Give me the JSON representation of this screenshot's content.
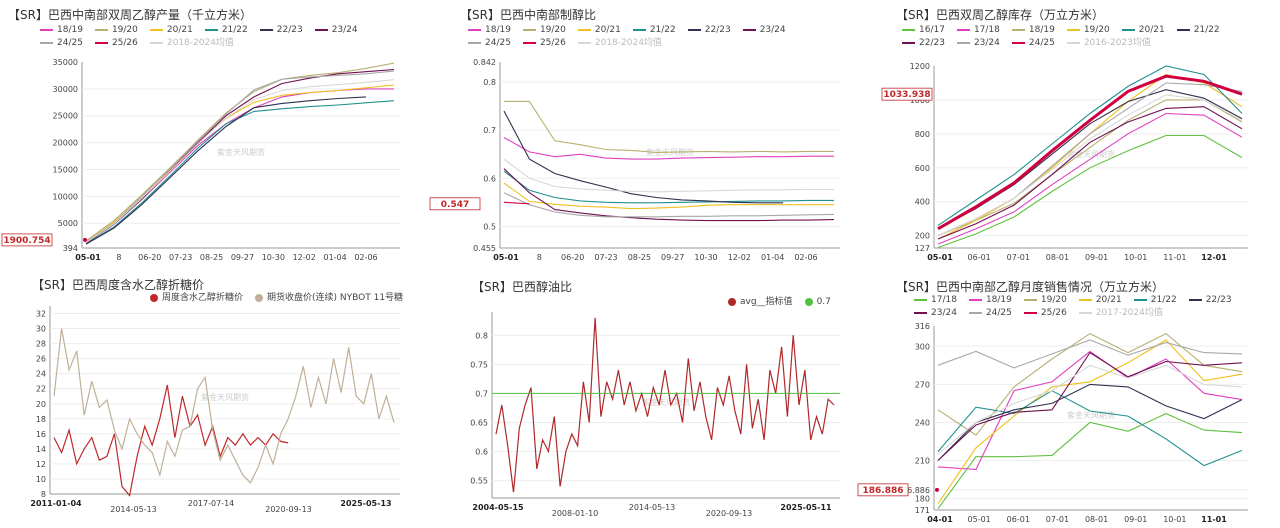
{
  "chart_data": [
    {
      "id": "c1",
      "type": "line",
      "title": "【SR】巴西中南部双周乙醇产量（千立方米）",
      "x_labels": [
        "05-01",
        "8",
        "06-20",
        "07-23",
        "08-25",
        "09-27",
        "10-30",
        "12-02",
        "01-04",
        "02-06"
      ],
      "ylim": [
        394,
        35000
      ],
      "y_ticks": [
        394,
        5000,
        10000,
        15000,
        20000,
        25000,
        30000,
        35000
      ],
      "highlight_value": "1900.754",
      "series": [
        {
          "name": "18/19",
          "color": "#e040c0",
          "values": [
            1300,
            5000,
            9500,
            14500,
            19500,
            23500,
            26500,
            28500,
            29300,
            29700,
            30000,
            30000
          ]
        },
        {
          "name": "19/20",
          "color": "#b8b070",
          "values": [
            1700,
            5500,
            10300,
            15300,
            20500,
            25500,
            29500,
            31800,
            32500,
            33000,
            33800,
            34800
          ]
        },
        {
          "name": "20/21",
          "color": "#f0c020",
          "values": [
            1500,
            5200,
            10000,
            15000,
            20000,
            24500,
            27500,
            28800,
            29300,
            29700,
            30200,
            30700
          ]
        },
        {
          "name": "21/22",
          "color": "#209090",
          "values": [
            1200,
            4300,
            8800,
            13800,
            19000,
            23500,
            25800,
            26300,
            26700,
            27000,
            27400,
            27800
          ]
        },
        {
          "name": "22/23",
          "color": "#303050",
          "values": [
            1100,
            4100,
            8500,
            13500,
            18500,
            23000,
            26500,
            27300,
            27800,
            28200,
            28500
          ]
        },
        {
          "name": "23/24",
          "color": "#701050",
          "values": [
            1300,
            4800,
            9500,
            14800,
            20000,
            25000,
            28500,
            31000,
            32000,
            32800,
            33200,
            33600
          ]
        },
        {
          "name": "24/25",
          "color": "#a8a8a8",
          "values": [
            1500,
            5000,
            10000,
            15200,
            20300,
            25300,
            29800,
            31800,
            32200,
            32500,
            32800,
            33300
          ]
        },
        {
          "name": "25/26",
          "color": "#d00040",
          "values": [
            1900.754
          ]
        },
        {
          "name": "2018-2024均值",
          "color": "#d8d8d8",
          "values": [
            1400,
            4900,
            9700,
            14700,
            19800,
            24600,
            28000,
            29700,
            30400,
            30800,
            31200,
            31700
          ]
        }
      ]
    },
    {
      "id": "c2",
      "type": "line",
      "title": "【SR】巴西中南部制醇比",
      "x_labels": [
        "05-01",
        "8",
        "06-20",
        "07-23",
        "08-25",
        "09-27",
        "10-30",
        "12-02",
        "01-04",
        "02-06"
      ],
      "ylim": [
        0.455,
        0.842
      ],
      "y_ticks": [
        0.455,
        0.5,
        0.6,
        0.7,
        0.8,
        0.842
      ],
      "highlight_value": "0.547",
      "series": [
        {
          "name": "18/19",
          "color": "#e040c0",
          "values": [
            0.685,
            0.655,
            0.645,
            0.65,
            0.642,
            0.64,
            0.64,
            0.642,
            0.643,
            0.644,
            0.645,
            0.645,
            0.646,
            0.646
          ]
        },
        {
          "name": "19/20",
          "color": "#b8b070",
          "values": [
            0.76,
            0.76,
            0.678,
            0.67,
            0.66,
            0.658,
            0.654,
            0.655,
            0.656,
            0.655,
            0.656,
            0.655,
            0.656,
            0.656
          ]
        },
        {
          "name": "20/21",
          "color": "#f0c020",
          "values": [
            0.59,
            0.552,
            0.546,
            0.542,
            0.54,
            0.537,
            0.538,
            0.54,
            0.544,
            0.545,
            0.545,
            0.545,
            0.545,
            0.545
          ]
        },
        {
          "name": "21/22",
          "color": "#209090",
          "values": [
            0.615,
            0.575,
            0.56,
            0.553,
            0.55,
            0.549,
            0.549,
            0.55,
            0.551,
            0.552,
            0.553,
            0.553,
            0.554,
            0.554
          ]
        },
        {
          "name": "22/23",
          "color": "#303050",
          "values": [
            0.74,
            0.64,
            0.61,
            0.595,
            0.582,
            0.568,
            0.56,
            0.555,
            0.553,
            0.55,
            0.549,
            0.549
          ]
        },
        {
          "name": "23/24",
          "color": "#701050",
          "values": [
            0.62,
            0.57,
            0.535,
            0.528,
            0.522,
            0.518,
            0.515,
            0.513,
            0.512,
            0.512,
            0.512,
            0.513,
            0.513,
            0.514
          ]
        },
        {
          "name": "24/25",
          "color": "#a8a8a8",
          "values": [
            0.57,
            0.545,
            0.53,
            0.523,
            0.52,
            0.52,
            0.52,
            0.521,
            0.521,
            0.522,
            0.522,
            0.523,
            0.524,
            0.525
          ]
        },
        {
          "name": "25/26",
          "color": "#d00040",
          "values": [
            0.55,
            0.547
          ]
        },
        {
          "name": "2018-2024均值",
          "color": "#d8d8d8",
          "values": [
            0.64,
            0.6,
            0.583,
            0.578,
            0.575,
            0.573,
            0.572,
            0.573,
            0.574,
            0.575,
            0.576,
            0.576,
            0.577,
            0.577
          ]
        }
      ]
    },
    {
      "id": "c3",
      "type": "line",
      "title": "【SR】巴西双周乙醇库存（万立方米）",
      "x_labels": [
        "05-01",
        "06-01",
        "07-01",
        "08-01",
        "09-01",
        "10-01",
        "11-01",
        "12-01"
      ],
      "ylim": [
        127,
        1200
      ],
      "y_ticks": [
        127,
        200,
        400,
        600,
        800,
        1000,
        1200
      ],
      "highlight_value": "1033.938",
      "series": [
        {
          "name": "16/17",
          "color": "#60c040",
          "values": [
            130,
            210,
            310,
            460,
            600,
            700,
            790,
            790,
            660
          ]
        },
        {
          "name": "17/18",
          "color": "#e040c0",
          "values": [
            150,
            240,
            340,
            500,
            650,
            800,
            920,
            910,
            780
          ]
        },
        {
          "name": "18/19",
          "color": "#b8b070",
          "values": [
            200,
            290,
            390,
            560,
            720,
            880,
            1000,
            1000,
            870
          ]
        },
        {
          "name": "19/20",
          "color": "#f0c020",
          "values": [
            180,
            290,
            420,
            600,
            800,
            990,
            1150,
            1100,
            960
          ]
        },
        {
          "name": "20/21",
          "color": "#209090",
          "values": [
            260,
            410,
            560,
            740,
            920,
            1080,
            1200,
            1150,
            920
          ]
        },
        {
          "name": "21/22",
          "color": "#303050",
          "values": [
            240,
            360,
            500,
            680,
            860,
            990,
            1060,
            1010,
            890
          ]
        },
        {
          "name": "22/23",
          "color": "#701050",
          "values": [
            180,
            270,
            380,
            560,
            750,
            870,
            950,
            960,
            830
          ]
        },
        {
          "name": "23/24",
          "color": "#a8a8a8",
          "values": [
            200,
            300,
            420,
            610,
            800,
            950,
            1100,
            1090,
            1050
          ]
        },
        {
          "name": "24/25",
          "color": "#d00040",
          "values": [
            240,
            370,
            510,
            700,
            880,
            1050,
            1140,
            1110,
            1033.938
          ]
        },
        {
          "name": "2016-2023均值",
          "color": "#d8d8d8",
          "values": [
            200,
            300,
            420,
            590,
            770,
            910,
            1030,
            1000,
            880
          ]
        }
      ]
    },
    {
      "id": "c4",
      "type": "line",
      "title": "【SR】巴西周度含水乙醇折糖价",
      "x_labels": [
        "2011-01-04",
        "2014-05-13",
        "2017-07-14",
        "2020-09-13",
        "2025-05-13"
      ],
      "ylim": [
        8,
        33
      ],
      "y_ticks": [
        8,
        10,
        12,
        14,
        16,
        18,
        20,
        22,
        24,
        26,
        28,
        30,
        32
      ],
      "series": [
        {
          "name": "周度含水乙醇折糖价",
          "color": "#c0282a",
          "values": [
            15.5,
            13.5,
            16.5,
            12.0,
            14.0,
            15.5,
            12.5,
            13.0,
            16.0,
            9.0,
            7.8,
            13.0,
            17.0,
            14.5,
            18.0,
            22.5,
            15.5,
            21.0,
            17.0,
            18.5,
            14.5,
            17.0,
            13.0,
            15.5,
            14.5,
            16.0,
            14.5,
            15.5,
            14.5,
            16.0,
            15.0,
            14.8
          ]
        },
        {
          "name": "期货收盘价(连续) NYBOT 11号糖",
          "color": "#c0b098",
          "values": [
            21.0,
            30.0,
            24.5,
            27.0,
            18.5,
            23.0,
            19.5,
            20.5,
            16.5,
            14.0,
            18.0,
            16.0,
            14.5,
            13.5,
            10.5,
            15.0,
            13.0,
            16.5,
            17.0,
            22.0,
            23.5,
            16.5,
            12.5,
            14.5,
            12.5,
            10.5,
            9.5,
            11.5,
            14.5,
            12.0,
            16.0,
            18.0,
            21.0,
            25.0,
            19.5,
            23.5,
            20.0,
            26.0,
            21.5,
            27.5,
            21.0,
            20.0,
            24.0,
            18.0,
            21.0,
            17.5
          ]
        }
      ]
    },
    {
      "id": "c5",
      "type": "line",
      "title": "【SR】巴西醇油比",
      "x_labels": [
        "2004-05-15",
        "2008-01-10",
        "2014-05-13",
        "2020-09-13",
        "2025-05-11"
      ],
      "ylim": [
        0.52,
        0.84
      ],
      "y_ticks": [
        0.55,
        0.6,
        0.65,
        0.7,
        0.75,
        0.8
      ],
      "series": [
        {
          "name": "avg__指标值",
          "color": "#b0282a",
          "values": [
            0.63,
            0.68,
            0.61,
            0.53,
            0.64,
            0.68,
            0.71,
            0.57,
            0.62,
            0.6,
            0.66,
            0.54,
            0.6,
            0.63,
            0.61,
            0.72,
            0.65,
            0.83,
            0.66,
            0.72,
            0.69,
            0.74,
            0.68,
            0.72,
            0.67,
            0.7,
            0.66,
            0.71,
            0.68,
            0.74,
            0.68,
            0.7,
            0.65,
            0.76,
            0.67,
            0.72,
            0.66,
            0.62,
            0.71,
            0.68,
            0.73,
            0.67,
            0.63,
            0.75,
            0.64,
            0.69,
            0.62,
            0.74,
            0.7,
            0.78,
            0.66,
            0.8,
            0.68,
            0.74,
            0.62,
            0.66,
            0.63,
            0.69,
            0.68
          ]
        },
        {
          "name": "0.7",
          "color": "#50c040",
          "values": [
            0.7
          ]
        }
      ]
    },
    {
      "id": "c6",
      "type": "line",
      "title": "【SR】巴西中南部乙醇月度销售情况（万立方米）",
      "x_labels": [
        "04-01",
        "05-01",
        "06-01",
        "07-01",
        "08-01",
        "09-01",
        "10-01",
        "11-01"
      ],
      "ylim": [
        171,
        316
      ],
      "y_ticks": [
        171,
        180,
        186.886,
        210,
        240,
        270,
        300,
        316
      ],
      "highlight_value": "186.886",
      "series": [
        {
          "name": "17/18",
          "color": "#60c040",
          "values": [
            172,
            213,
            213,
            214,
            240,
            233,
            247,
            234,
            232
          ]
        },
        {
          "name": "18/19",
          "color": "#e040c0",
          "values": [
            205,
            203,
            265,
            272,
            296,
            275,
            290,
            263,
            258
          ]
        },
        {
          "name": "19/20",
          "color": "#b8b070",
          "values": [
            250,
            230,
            268,
            290,
            310,
            295,
            310,
            285,
            280
          ]
        },
        {
          "name": "20/21",
          "color": "#f0c020",
          "values": [
            176,
            220,
            245,
            268,
            272,
            287,
            305,
            273,
            278
          ]
        },
        {
          "name": "21/22",
          "color": "#209090",
          "values": [
            217,
            252,
            247,
            265,
            249,
            245,
            227,
            206,
            218
          ]
        },
        {
          "name": "22/23",
          "color": "#303050",
          "values": [
            210,
            240,
            250,
            255,
            270,
            268,
            253,
            243,
            258
          ]
        },
        {
          "name": "23/24",
          "color": "#701050",
          "values": [
            210,
            238,
            248,
            250,
            295,
            276,
            288,
            285,
            287
          ]
        },
        {
          "name": "24/25",
          "color": "#a8a8a8",
          "values": [
            285,
            296,
            283,
            294,
            305,
            293,
            303,
            295,
            294
          ]
        },
        {
          "name": "25/26",
          "color": "#d00040",
          "values": [
            186.886
          ]
        },
        {
          "name": "2017-2024均值",
          "color": "#d8d8d8",
          "values": [
            215,
            240,
            255,
            265,
            285,
            275,
            285,
            270,
            268
          ]
        }
      ]
    }
  ],
  "watermark": "紫金天风期货"
}
